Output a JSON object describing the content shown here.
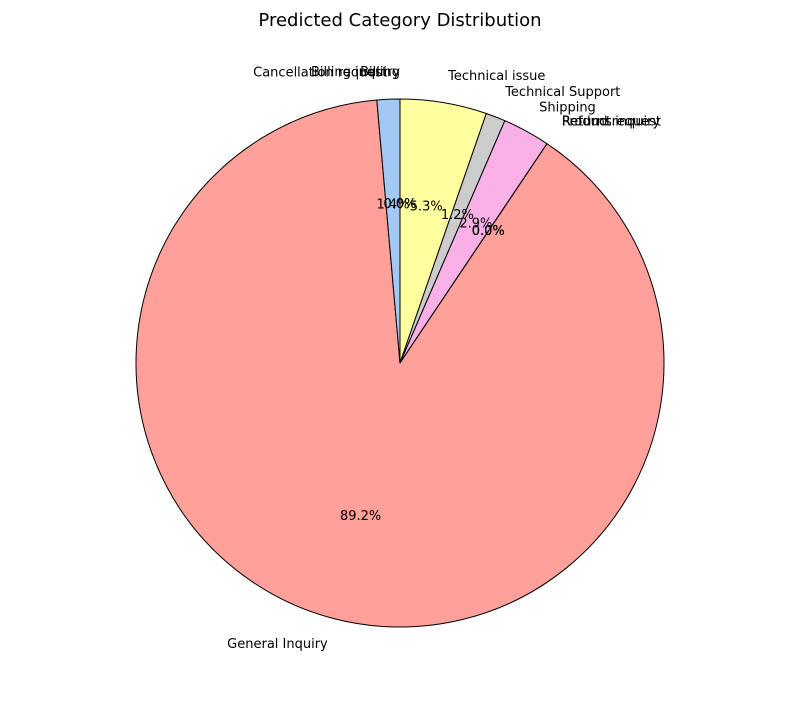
{
  "chart_data": {
    "type": "pie",
    "title": "Predicted Category Distribution",
    "start_angle_deg": 90,
    "direction": "clockwise",
    "slices": [
      {
        "label": "Technical issue",
        "value": 5.3,
        "pct_text": "5.3%",
        "color": "#ffffa0"
      },
      {
        "label": "Technical Support",
        "value": 1.2,
        "pct_text": "1.2%",
        "color": "#cccccc"
      },
      {
        "label": "Shipping",
        "value": 2.9,
        "pct_text": "2.9%",
        "color": "#f9b0e6"
      },
      {
        "label": "Returns",
        "value": 0.0,
        "pct_text": "0.0%",
        "color": "#f9b0e6"
      },
      {
        "label": "Refund request",
        "value": 0.0,
        "pct_text": "0.0%",
        "color": "#cccccc"
      },
      {
        "label": "Product inquiry",
        "value": 0.0,
        "pct_text": "0.0%",
        "color": "#ffffa0"
      },
      {
        "label": "General Inquiry",
        "value": 89.2,
        "pct_text": "89.2%",
        "color": "#ffa09a"
      },
      {
        "label": "Cancellation request",
        "value": 1.4,
        "pct_text": "1.4%",
        "color": "#a2c8f4"
      },
      {
        "label": "Billing inquiry",
        "value": 0.0,
        "pct_text": "0.0%",
        "color": "#a2c8f4"
      },
      {
        "label": "Billing",
        "value": 0.0,
        "pct_text": "0.0%",
        "color": "#a2c8f4"
      }
    ]
  }
}
